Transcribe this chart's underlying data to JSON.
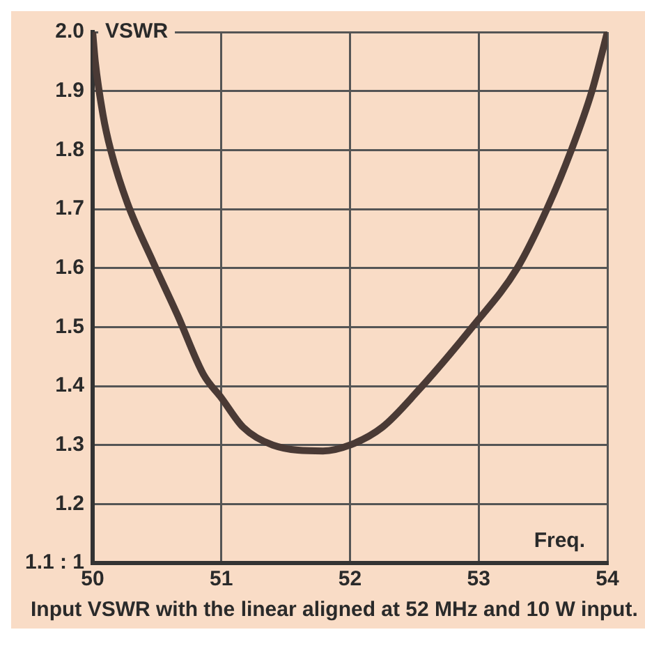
{
  "chart_data": {
    "type": "line",
    "ylabel": "VSWR",
    "xlabel": "Freq.",
    "annotations": [
      "Input VSWR with the linear aligned at 52 MHz and 10 W input."
    ],
    "x": [
      50,
      50.02,
      50.08,
      50.14,
      50.27,
      50.47,
      50.66,
      50.86,
      51,
      51.17,
      51.4,
      51.79,
      52,
      52.25,
      52.52,
      52.95,
      53.3,
      53.53,
      53.72,
      53.88,
      54
    ],
    "series": [
      {
        "color": "#4a3a35",
        "values": [
          2.0,
          1.95,
          1.86,
          1.8,
          1.71,
          1.61,
          1.52,
          1.42,
          1.38,
          1.33,
          1.3,
          1.29,
          1.3,
          1.33,
          1.39,
          1.5,
          1.6,
          1.7,
          1.8,
          1.9,
          2.0
        ]
      }
    ],
    "xlim": [
      50,
      54
    ],
    "xticks": [
      50,
      51,
      52,
      53,
      54
    ],
    "ylim": [
      1.1,
      2.0
    ],
    "yticks": [
      {
        "value": 1.1,
        "label": "1.1 : 1"
      },
      1.2,
      1.3,
      1.4,
      1.5,
      1.6,
      1.7,
      1.8,
      1.9,
      {
        "value": 2.0,
        "label": "2.0"
      }
    ],
    "grid": true,
    "legend": false,
    "marker": "none",
    "line_style": "solid"
  }
}
